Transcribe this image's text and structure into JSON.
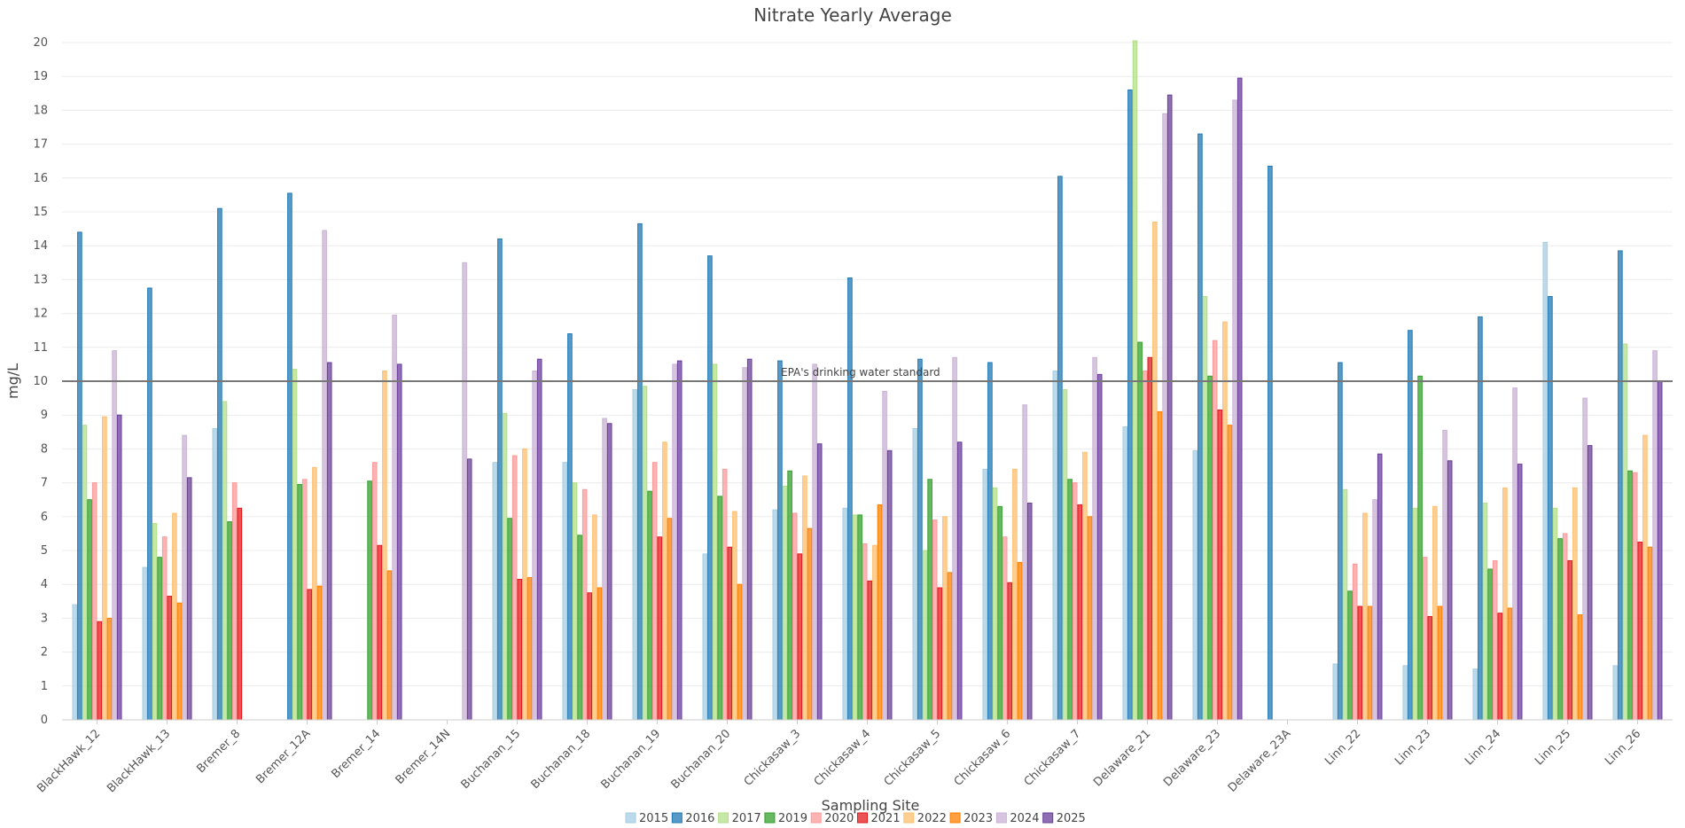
{
  "chart_data": {
    "type": "bar",
    "title": "Nitrate Yearly Average",
    "xlabel": "Sampling Site",
    "ylabel": "mg/L",
    "ylim": [
      0,
      20
    ],
    "yticks": [
      0,
      1,
      2,
      3,
      4,
      5,
      6,
      7,
      8,
      9,
      10,
      11,
      12,
      13,
      14,
      15,
      16,
      17,
      18,
      19,
      20
    ],
    "grid": true,
    "legend_position": "bottom",
    "categories": [
      "BlackHawk_12",
      "BlackHawk_13",
      "Bremer_8",
      "Bremer_12A",
      "Bremer_14",
      "Bremer_14N",
      "Buchanan_15",
      "Buchanan_18",
      "Buchanan_19",
      "Buchanan_20",
      "Chickasaw_3",
      "Chickasaw_4",
      "Chickasaw_5",
      "Chickasaw_6",
      "Chickasaw_7",
      "Delaware_21",
      "Delaware_23",
      "Delaware_23A",
      "Linn_22",
      "Linn_23",
      "Linn_24",
      "Linn_25",
      "Linn_26"
    ],
    "reference_line": {
      "value": 10,
      "label": "EPA's drinking water standard",
      "color": "#777777"
    },
    "series": [
      {
        "name": "2015",
        "color": "#a6cee3",
        "values": [
          3.4,
          4.5,
          8.6,
          null,
          null,
          null,
          7.6,
          7.6,
          9.75,
          4.9,
          6.2,
          6.25,
          8.6,
          7.4,
          10.3,
          8.65,
          7.95,
          null,
          1.65,
          1.6,
          1.5,
          14.1,
          1.6
        ]
      },
      {
        "name": "2016",
        "color": "#1f78b4",
        "values": [
          14.4,
          12.75,
          15.1,
          15.55,
          null,
          null,
          14.2,
          11.4,
          14.65,
          13.7,
          10.6,
          13.05,
          10.65,
          10.55,
          16.05,
          18.6,
          17.3,
          16.35,
          10.55,
          11.5,
          11.9,
          12.5,
          13.85
        ]
      },
      {
        "name": "2017",
        "color": "#b2df8a",
        "values": [
          8.7,
          5.8,
          9.4,
          10.35,
          null,
          null,
          9.05,
          7.0,
          9.85,
          10.5,
          6.9,
          6.05,
          5.0,
          6.85,
          9.75,
          20.05,
          12.5,
          null,
          6.8,
          6.25,
          6.4,
          6.25,
          11.1
        ]
      },
      {
        "name": "2019",
        "color": "#33a02c",
        "values": [
          6.5,
          4.8,
          5.85,
          6.95,
          7.05,
          null,
          5.95,
          5.45,
          6.75,
          6.6,
          7.35,
          6.05,
          7.1,
          6.3,
          7.1,
          11.15,
          10.15,
          null,
          3.8,
          10.15,
          4.45,
          5.35,
          7.35
        ]
      },
      {
        "name": "2020",
        "color": "#fb9a99",
        "values": [
          7.0,
          5.4,
          7.0,
          7.1,
          7.6,
          null,
          7.8,
          6.8,
          7.6,
          7.4,
          6.1,
          5.2,
          5.9,
          5.4,
          7.0,
          10.3,
          11.2,
          null,
          4.6,
          4.8,
          4.7,
          5.5,
          7.3
        ]
      },
      {
        "name": "2021",
        "color": "#e31a1c",
        "values": [
          2.9,
          3.65,
          6.25,
          3.85,
          5.15,
          null,
          4.15,
          3.75,
          5.4,
          5.1,
          4.9,
          4.1,
          3.9,
          4.05,
          6.35,
          10.7,
          9.15,
          null,
          3.35,
          3.05,
          3.15,
          4.7,
          5.25
        ]
      },
      {
        "name": "2022",
        "color": "#fdbf6f",
        "values": [
          8.95,
          6.1,
          null,
          7.45,
          10.3,
          null,
          8.0,
          6.05,
          8.2,
          6.15,
          7.2,
          5.15,
          6.0,
          7.4,
          7.9,
          14.7,
          11.75,
          null,
          6.1,
          6.3,
          6.85,
          6.85,
          8.4
        ]
      },
      {
        "name": "2023",
        "color": "#ff7f00",
        "values": [
          3.0,
          3.45,
          null,
          3.95,
          4.4,
          null,
          4.2,
          3.9,
          5.95,
          4.0,
          5.65,
          6.35,
          4.35,
          4.65,
          6.0,
          9.1,
          8.7,
          null,
          3.35,
          3.35,
          3.3,
          3.1,
          5.1
        ]
      },
      {
        "name": "2024",
        "color": "#cab2d6",
        "values": [
          10.9,
          8.4,
          null,
          14.45,
          11.95,
          13.5,
          10.3,
          8.9,
          10.5,
          10.4,
          10.5,
          9.7,
          10.7,
          9.3,
          10.7,
          17.9,
          18.3,
          null,
          6.5,
          8.55,
          9.8,
          9.5,
          10.9
        ]
      },
      {
        "name": "2025",
        "color": "#6a3d9a",
        "values": [
          9.0,
          7.15,
          null,
          10.55,
          10.5,
          7.7,
          10.65,
          8.75,
          10.6,
          10.65,
          8.15,
          7.95,
          8.2,
          6.4,
          10.2,
          18.45,
          18.95,
          null,
          7.85,
          7.65,
          7.55,
          8.1,
          10.0
        ]
      }
    ]
  }
}
